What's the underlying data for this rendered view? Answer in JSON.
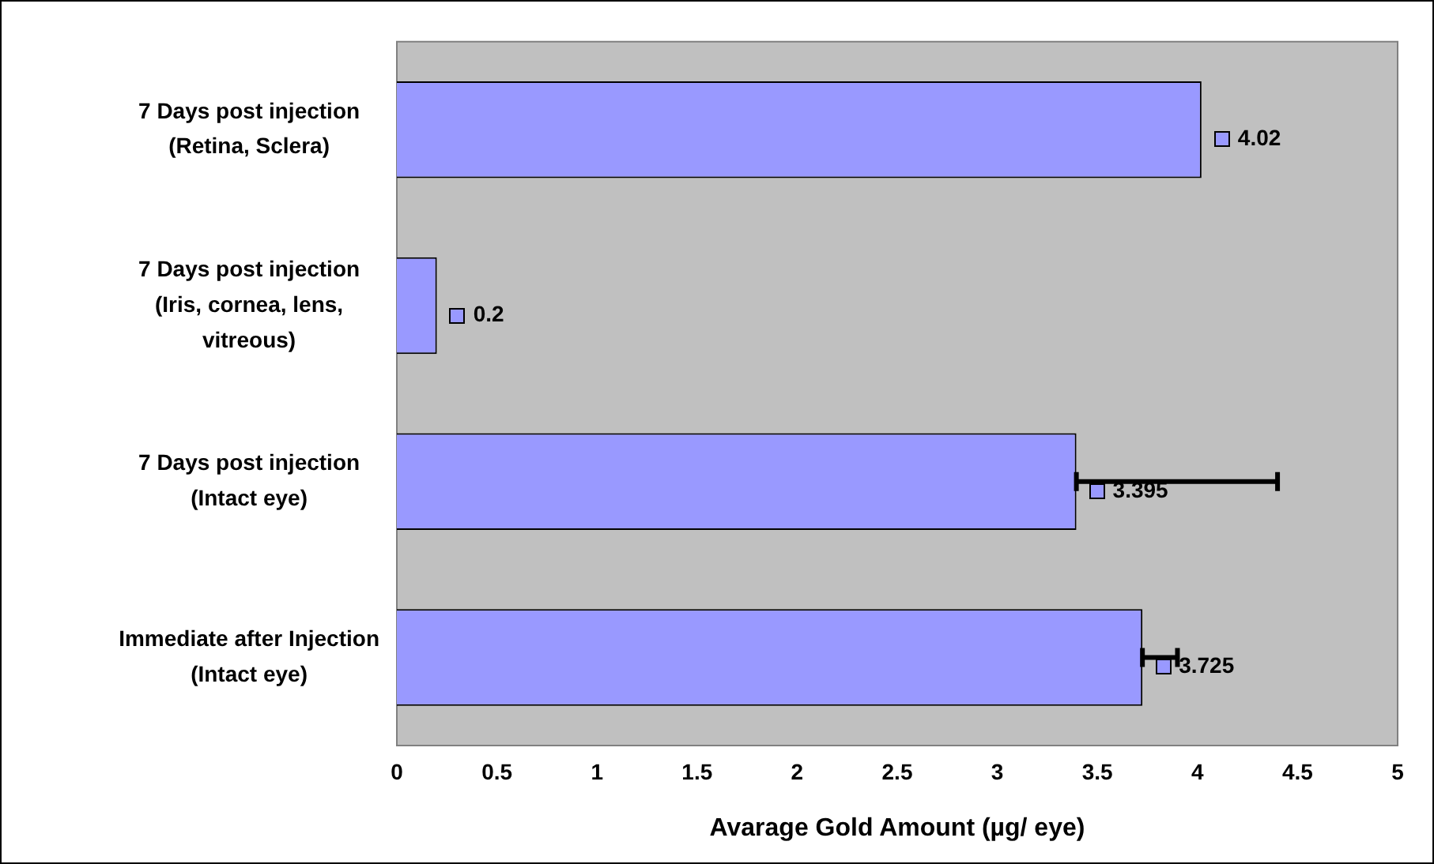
{
  "chart_data": {
    "type": "bar",
    "orientation": "horizontal",
    "xlabel": "Avarage Gold Amount (µg/ eye)",
    "categories": [
      "7 Days post injection\n(Retina, Sclera)",
      "7 Days post injection\n(Iris, cornea, lens,\nvitreous)",
      "7 Days post injection\n(Intact eye)",
      "Immediate after Injection\n(Intact eye)"
    ],
    "values": [
      4.02,
      0.2,
      3.395,
      3.725
    ],
    "errors": [
      null,
      null,
      [
        3.395,
        4.4
      ],
      [
        3.725,
        3.9
      ]
    ],
    "color": "#9999ff",
    "data_labels": true,
    "grid": false,
    "legend": false,
    "xlim": [
      0,
      5
    ],
    "xticks": [
      0,
      0.5,
      1,
      1.5,
      2,
      2.5,
      3,
      3.5,
      4,
      4.5,
      5
    ]
  }
}
